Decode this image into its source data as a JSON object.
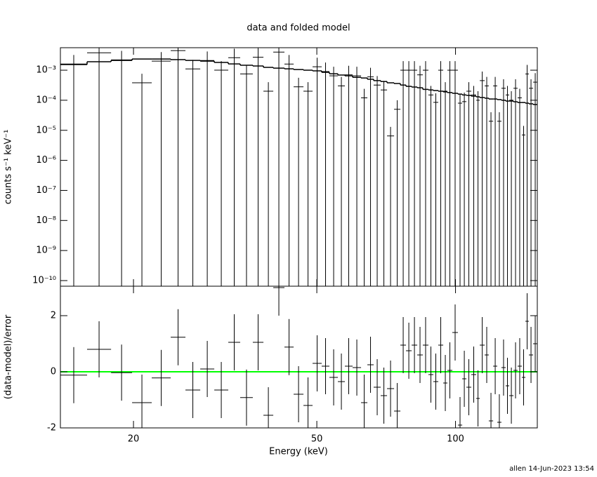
{
  "chart_data": {
    "type": "errorbar",
    "title": "data and folded model",
    "xlabel": "Energy (keV)",
    "xlog": true,
    "xlim": [
      13.88,
      150.5
    ],
    "xticks": [
      20,
      50,
      100
    ],
    "bins": [
      13.88,
      15.86,
      17.88,
      19.86,
      21.91,
      24.09,
      25.93,
      27.92,
      29.95,
      32.12,
      34.09,
      36.31,
      38.29,
      40.22,
      42.53,
      44.53,
      46.77,
      48.95,
      51.23,
      53.25,
      55.55,
      57.52,
      59.79,
      62.37,
      64.37,
      66.43,
      68.81,
      71.02,
      73.56,
      75.92,
      78.08,
      80.31,
      82.59,
      84.92,
      87.34,
      89.52,
      91.75,
      94.04,
      96.03,
      98.43,
      101.2,
      103.4,
      105.6,
      108.2,
      110.9,
      112.9,
      115.7,
      118.1,
      120.7,
      123.2,
      125.8,
      128.5,
      130.8,
      133.6,
      136.4,
      139.3,
      141.8,
      144.3,
      147.4,
      150.5
    ],
    "panels": [
      {
        "type": "errorbar",
        "ylabel": "counts s⁻¹ keV⁻¹",
        "ylog": true,
        "ylim": [
          6.5e-11,
          0.0056
        ],
        "yticks": [
          {
            "value": 1e-10,
            "label": "10⁻¹⁰"
          },
          {
            "value": 1e-09,
            "label": "10⁻⁹"
          },
          {
            "value": 1e-08,
            "label": "10⁻⁸"
          },
          {
            "value": 1e-07,
            "label": "10⁻⁷"
          },
          {
            "value": 1e-06,
            "label": "10⁻⁶"
          },
          {
            "value": 1e-05,
            "label": "10⁻⁵"
          },
          {
            "value": 0.0001,
            "label": "10⁻⁴"
          },
          {
            "value": 0.001,
            "label": "10⁻³"
          }
        ],
        "series": [
          {
            "color": "#000000",
            "values": [
              0.0016,
              0.0038,
              0.0022,
              0.00038,
              0.002,
              0.0045,
              0.0011,
              0.0021,
              0.001,
              0.0026,
              0.00075,
              0.0027,
              0.0002,
              0.004,
              0.0016,
              0.00028,
              0.0002,
              0.0013,
              0.0009,
              0.00065,
              0.0003,
              0.0007,
              0.00065,
              0.00012,
              0.0006,
              0.00032,
              0.00022,
              6.5e-06,
              5e-05,
              0.001,
              0.001,
              0.001,
              0.0007,
              0.001,
              0.00015,
              8.5e-05,
              0.001,
              0.0002,
              0.001,
              0.001,
              8e-05,
              9e-05,
              0.0002,
              0.00015,
              0.0001,
              0.00045,
              0.0003,
              2e-05,
              0.0003,
              2e-05,
              0.00025,
              0.00015,
              0.0001,
              0.00025,
              0.00012,
              7e-06,
              0.00075,
              0.00025,
              0.0004
            ],
            "errors": [
              0.0016,
              0.0038,
              0.0022,
              0.00038,
              0.002,
              0.0045,
              0.0011,
              0.0021,
              0.001,
              0.0026,
              0.00075,
              0.0027,
              0.0002,
              0.004,
              0.0016,
              0.00028,
              0.0002,
              0.0013,
              0.0009,
              0.00065,
              0.0003,
              0.0007,
              0.00065,
              0.00012,
              0.0006,
              0.00032,
              0.00022,
              6.5e-06,
              5e-05,
              0.001,
              0.001,
              0.001,
              0.0007,
              0.001,
              0.00015,
              8.5e-05,
              0.001,
              0.0002,
              0.001,
              0.001,
              8e-05,
              9e-05,
              0.0002,
              0.00015,
              0.0001,
              0.00045,
              0.0003,
              2e-05,
              0.0003,
              2e-05,
              0.00025,
              0.00015,
              0.0001,
              0.00025,
              0.00012,
              7e-06,
              0.00075,
              0.00025,
              0.0004
            ]
          },
          {
            "type": "step",
            "color": "#000000",
            "values": [
              0.00154,
              0.00191,
              0.00212,
              0.00236,
              0.00236,
              0.00224,
              0.00212,
              0.00201,
              0.00181,
              0.00162,
              0.00146,
              0.00138,
              0.00124,
              0.00117,
              0.00111,
              0.00105,
              0.001,
              0.00095,
              0.00085,
              0.00076,
              0.00069,
              0.00065,
              0.00058,
              0.00055,
              0.0005,
              0.00045,
              0.00042,
              0.00038,
              0.00036,
              0.00032,
              0.00029,
              0.000275,
              0.00026,
              0.00023,
              0.00022,
              0.00021,
              0.0002,
              0.00019,
              0.00018,
              0.00017,
              0.00016,
              0.00015,
              0.000145,
              0.000137,
              0.00013,
              0.000123,
              0.000117,
              0.00011,
              0.00011,
              0.000105,
              0.0001,
              9.4e-05,
              9.4e-05,
              8.9e-05,
              8.4e-05,
              8.4e-05,
              8e-05,
              7.6e-05,
              7.2e-05
            ]
          }
        ]
      },
      {
        "type": "errorbar",
        "ylabel": "(data-model)/error",
        "ylog": false,
        "ylim": [
          -2,
          3.05
        ],
        "yticks": [
          -2,
          0,
          2
        ],
        "zero_line": {
          "value": 0,
          "color": "#00ff00"
        },
        "series": [
          {
            "color": "#000000",
            "values": [
              -0.12,
              0.8,
              -0.03,
              -1.1,
              -0.22,
              1.23,
              -0.65,
              0.1,
              -0.65,
              1.05,
              -0.92,
              1.05,
              -1.55,
              3.0,
              0.88,
              -0.8,
              -1.2,
              0.3,
              0.2,
              -0.2,
              -0.35,
              0.2,
              0.15,
              -1.1,
              0.25,
              -0.55,
              -0.85,
              -0.6,
              -1.4,
              0.95,
              0.75,
              0.95,
              0.6,
              0.95,
              -0.1,
              -0.35,
              0.95,
              -0.4,
              0.05,
              1.4,
              -1.9,
              -0.25,
              -0.55,
              -0.1,
              -0.95,
              0.95,
              0.6,
              -1.75,
              0.2,
              -1.8,
              0.15,
              -0.5,
              -0.85,
              0.05,
              0.2,
              -0.2,
              1.8,
              0.6,
              1.0
            ],
            "errors": [
              1,
              1,
              1,
              1,
              1,
              1,
              1,
              1,
              1,
              1,
              1,
              1,
              1,
              1,
              1,
              1,
              1,
              1,
              1,
              1,
              1,
              1,
              1,
              1,
              1,
              1,
              1,
              1,
              1,
              1,
              1,
              1,
              1,
              1,
              1,
              1,
              1,
              1,
              1,
              1,
              1,
              1,
              1,
              1,
              1,
              1,
              1,
              1,
              1,
              1,
              1,
              1,
              1,
              1,
              1,
              1,
              1,
              1,
              1
            ]
          }
        ]
      }
    ]
  },
  "footer": "allen 14-Jun-2023 13:54"
}
